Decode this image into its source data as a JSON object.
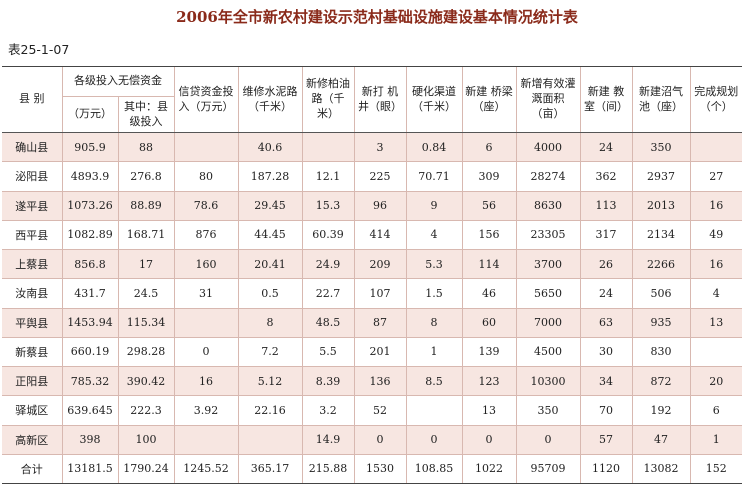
{
  "title": "2006年全市新农村建设示范村基础设施建设基本情况统计表",
  "table_code": "表25-1-07",
  "headers": {
    "county": "县 别",
    "group_funds": "各级投入无偿资金",
    "wan_yuan": "（万元）",
    "county_invest": "其中：县级投入",
    "credit": "信贷资金投入（万元）",
    "road": "维修水泥路（千米）",
    "asphalt": "新修柏油路（千米）",
    "wells": "新打 机井（眼）",
    "channels": "硬化渠道（千米）",
    "bridges": "新建 桥梁（座）",
    "irrigation": "新增有效灌溉面积（亩）",
    "classrooms": "新建 教室（间）",
    "biogas": "新建沼气池（座）",
    "planning": "完成规划（个）"
  },
  "rows": [
    {
      "county": "确山县",
      "funds": "905.9",
      "county_invest": "88",
      "credit": "",
      "road": "40.6",
      "asphalt": "",
      "wells": "3",
      "channels": "0.84",
      "bridges": "6",
      "irrigation": "4000",
      "classrooms": "24",
      "biogas": "350",
      "planning": ""
    },
    {
      "county": "泌阳县",
      "funds": "4893.9",
      "county_invest": "276.8",
      "credit": "80",
      "road": "187.28",
      "asphalt": "12.1",
      "wells": "225",
      "channels": "70.71",
      "bridges": "309",
      "irrigation": "28274",
      "classrooms": "362",
      "biogas": "2937",
      "planning": "27"
    },
    {
      "county": "遂平县",
      "funds": "1073.26",
      "county_invest": "88.89",
      "credit": "78.6",
      "road": "29.45",
      "asphalt": "15.3",
      "wells": "96",
      "channels": "9",
      "bridges": "56",
      "irrigation": "8630",
      "classrooms": "113",
      "biogas": "2013",
      "planning": "16"
    },
    {
      "county": "西平县",
      "funds": "1082.89",
      "county_invest": "168.71",
      "credit": "876",
      "road": "44.45",
      "asphalt": "60.39",
      "wells": "414",
      "channels": "4",
      "bridges": "156",
      "irrigation": "23305",
      "classrooms": "317",
      "biogas": "2134",
      "planning": "49"
    },
    {
      "county": "上蔡县",
      "funds": "856.8",
      "county_invest": "17",
      "credit": "160",
      "road": "20.41",
      "asphalt": "24.9",
      "wells": "209",
      "channels": "5.3",
      "bridges": "114",
      "irrigation": "3700",
      "classrooms": "26",
      "biogas": "2266",
      "planning": "16"
    },
    {
      "county": "汝南县",
      "funds": "431.7",
      "county_invest": "24.5",
      "credit": "31",
      "road": "0.5",
      "asphalt": "22.7",
      "wells": "107",
      "channels": "1.5",
      "bridges": "46",
      "irrigation": "5650",
      "classrooms": "24",
      "biogas": "506",
      "planning": "4"
    },
    {
      "county": "平舆县",
      "funds": "1453.94",
      "county_invest": "115.34",
      "credit": "",
      "road": "8",
      "asphalt": "48.5",
      "wells": "87",
      "channels": "8",
      "bridges": "60",
      "irrigation": "7000",
      "classrooms": "63",
      "biogas": "935",
      "planning": "13"
    },
    {
      "county": "新蔡县",
      "funds": "660.19",
      "county_invest": "298.28",
      "credit": "0",
      "road": "7.2",
      "asphalt": "5.5",
      "wells": "201",
      "channels": "1",
      "bridges": "139",
      "irrigation": "4500",
      "classrooms": "30",
      "biogas": "830",
      "planning": ""
    },
    {
      "county": "正阳县",
      "funds": "785.32",
      "county_invest": "390.42",
      "credit": "16",
      "road": "5.12",
      "asphalt": "8.39",
      "wells": "136",
      "channels": "8.5",
      "bridges": "123",
      "irrigation": "10300",
      "classrooms": "34",
      "biogas": "872",
      "planning": "20"
    },
    {
      "county": "驿城区",
      "funds": "639.645",
      "county_invest": "222.3",
      "credit": "3.92",
      "road": "22.16",
      "asphalt": "3.2",
      "wells": "52",
      "channels": "",
      "bridges": "13",
      "irrigation": "350",
      "classrooms": "70",
      "biogas": "192",
      "planning": "6"
    },
    {
      "county": "高新区",
      "funds": "398",
      "county_invest": "100",
      "credit": "",
      "road": "",
      "asphalt": "14.9",
      "wells": "0",
      "channels": "0",
      "bridges": "0",
      "irrigation": "0",
      "classrooms": "57",
      "biogas": "47",
      "planning": "1"
    },
    {
      "county": "合计",
      "funds": "13181.5",
      "county_invest": "1790.24",
      "credit": "1245.52",
      "road": "365.17",
      "asphalt": "215.88",
      "wells": "1530",
      "channels": "108.85",
      "bridges": "1022",
      "irrigation": "95709",
      "classrooms": "1120",
      "biogas": "13082",
      "planning": "152"
    }
  ]
}
